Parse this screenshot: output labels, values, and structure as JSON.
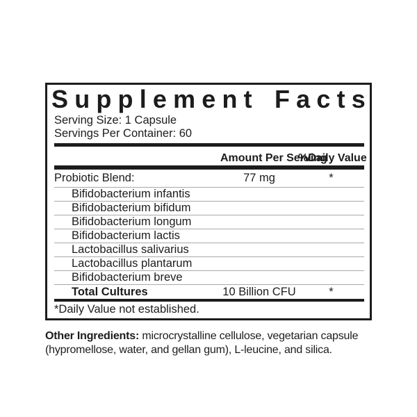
{
  "label": {
    "title": "Supplement Facts",
    "serving_size": "Serving Size: 1 Capsule",
    "servings_per_container": "Servings Per Container: 60",
    "columns": {
      "amount": "Amount Per Serving",
      "daily_value": "%Daily Value"
    },
    "rows": [
      {
        "name": "Probiotic Blend:",
        "amount": "77 mg",
        "daily_value": "*",
        "indent": false,
        "bold": false
      },
      {
        "name": "Bifidobacterium infantis",
        "amount": "",
        "daily_value": "",
        "indent": true,
        "bold": false
      },
      {
        "name": "Bifidobacterium bifidum",
        "amount": "",
        "daily_value": "",
        "indent": true,
        "bold": false
      },
      {
        "name": "Bifidobacterium longum",
        "amount": "",
        "daily_value": "",
        "indent": true,
        "bold": false
      },
      {
        "name": "Bifidobacterium lactis",
        "amount": "",
        "daily_value": "",
        "indent": true,
        "bold": false
      },
      {
        "name": "Lactobacillus salivarius",
        "amount": "",
        "daily_value": "",
        "indent": true,
        "bold": false
      },
      {
        "name": "Lactobacillus plantarum",
        "amount": "",
        "daily_value": "",
        "indent": true,
        "bold": false
      },
      {
        "name": "Bifidobacterium breve",
        "amount": "",
        "daily_value": "",
        "indent": true,
        "bold": false
      },
      {
        "name": "Total Cultures",
        "amount": "10 Billion CFU",
        "daily_value": "*",
        "indent": true,
        "bold": true
      }
    ],
    "footnote": "*Daily Value not established.",
    "other_ingredients": {
      "label": "Other Ingredients:",
      "text": "microcrystalline cellulose, vegetarian capsule (hypromellose, water, and gellan gum), L-leucine, and silica."
    }
  },
  "colors": {
    "ink": "#1c1c1c",
    "separator": "#a8a8a8",
    "background": "#ffffff"
  }
}
